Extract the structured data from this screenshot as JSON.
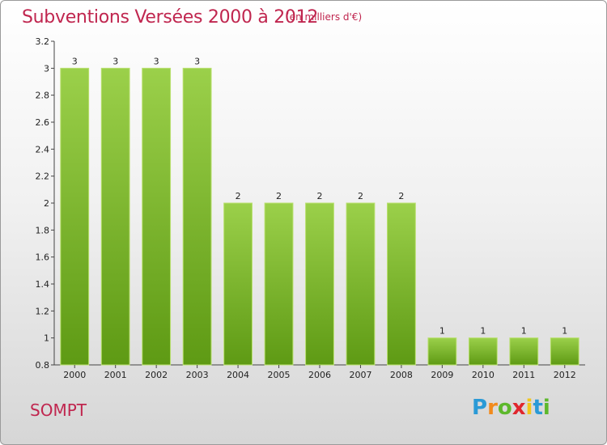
{
  "header": {
    "title": "Subventions Versées 2000 à 2012",
    "subtitle": "(en milliers d'€)"
  },
  "commune": "SOMPT",
  "logo": {
    "letters": [
      "P",
      "r",
      "o",
      "x",
      "i",
      "t",
      "i"
    ],
    "colors": [
      "#2a9ad6",
      "#f28a1c",
      "#5db82c",
      "#e0262d",
      "#f2c61c",
      "#2a9ad6",
      "#5db82c"
    ]
  },
  "colors": {
    "bar_top": "#9bd04a",
    "bar_bottom": "#5e9a14",
    "text_accent": "#c0264f"
  },
  "chart_data": {
    "type": "bar",
    "categories": [
      "2000",
      "2001",
      "2002",
      "2003",
      "2004",
      "2005",
      "2006",
      "2007",
      "2008",
      "2009",
      "2010",
      "2011",
      "2012"
    ],
    "values": [
      3,
      3,
      3,
      3,
      2,
      2,
      2,
      2,
      2,
      1,
      1,
      1,
      1
    ],
    "data_labels": [
      "3",
      "3",
      "3",
      "3",
      "2",
      "2",
      "2",
      "2",
      "2",
      "1",
      "1",
      "1",
      "1"
    ],
    "title": "Subventions Versées 2000 à 2012",
    "xlabel": "",
    "ylabel": "",
    "ylim": [
      0.8,
      3.2
    ],
    "yticks": [
      0.8,
      1,
      1.2,
      1.4,
      1.6,
      1.8,
      2,
      2.2,
      2.4,
      2.6,
      2.8,
      3,
      3.2
    ],
    "ytick_labels": [
      "0.8",
      "1",
      "1.2",
      "1.4",
      "1.6",
      "1.8",
      "2",
      "2.2",
      "2.4",
      "2.6",
      "2.8",
      "3",
      "3.2"
    ],
    "grid": false,
    "legend": "none"
  }
}
